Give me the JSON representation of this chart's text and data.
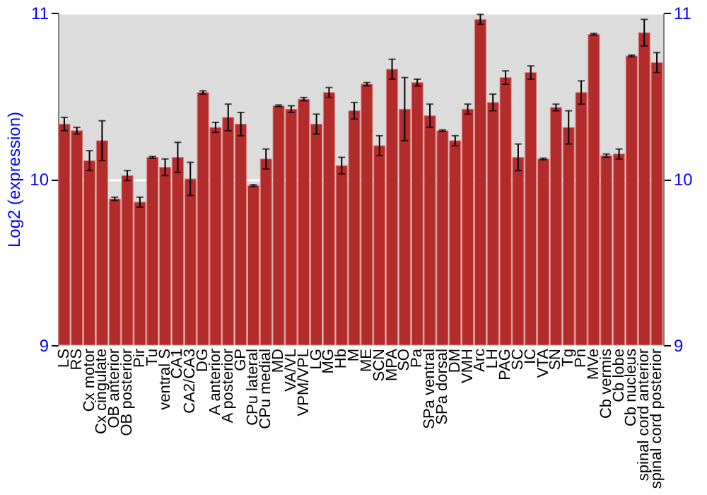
{
  "chart_data": {
    "type": "bar",
    "ylabel": "Log2 (expression)",
    "categories": [
      "LS",
      "RS",
      "Cx motor",
      "Cx cingulate",
      "OB anterior",
      "OB posterior",
      "Pir",
      "Tu",
      "ventral S",
      "CA1",
      "CA2/CA3",
      "DG",
      "A anterior",
      "A posterior",
      "GP",
      "CPu lateral",
      "CPu medial",
      "MD",
      "VA/VL",
      "VPM/VPL",
      "LG",
      "MG",
      "Hb",
      "M",
      "ME",
      "SCN",
      "MPA",
      "SO",
      "Pa",
      "SPa ventral",
      "SPa dorsal",
      "DM",
      "VMH",
      "Arc",
      "LH",
      "PAG",
      "SC",
      "IC",
      "VTA",
      "SN",
      "Tg",
      "Pn",
      "MVe",
      "Cb vermis",
      "Cb lobe",
      "Cb nucleus",
      "spinal cord anterior",
      "spinal cord posterior"
    ],
    "values": [
      10.33,
      10.29,
      10.11,
      10.23,
      9.88,
      10.02,
      9.86,
      10.13,
      10.07,
      10.13,
      10.0,
      10.52,
      10.31,
      10.37,
      10.33,
      9.96,
      10.12,
      10.44,
      10.42,
      10.48,
      10.33,
      10.52,
      10.08,
      10.41,
      10.57,
      10.2,
      10.66,
      10.42,
      10.58,
      10.38,
      10.29,
      10.23,
      10.42,
      10.96,
      10.46,
      10.61,
      10.13,
      10.64,
      10.12,
      10.43,
      10.31,
      10.52,
      10.87,
      10.14,
      10.15,
      10.74,
      10.88,
      10.7
    ],
    "errors": [
      0.04,
      0.02,
      0.06,
      0.12,
      0.01,
      0.03,
      0.03,
      0.005,
      0.05,
      0.09,
      0.1,
      0.01,
      0.03,
      0.08,
      0.07,
      0.005,
      0.06,
      0.005,
      0.02,
      0.01,
      0.06,
      0.03,
      0.05,
      0.05,
      0.01,
      0.06,
      0.06,
      0.19,
      0.02,
      0.07,
      0.005,
      0.03,
      0.03,
      0.03,
      0.05,
      0.04,
      0.08,
      0.04,
      0.005,
      0.02,
      0.1,
      0.07,
      0.005,
      0.01,
      0.03,
      0.005,
      0.08,
      0.06
    ],
    "color": "#b22c2c",
    "ylim": [
      9,
      11
    ],
    "yticks": [
      9,
      10,
      11
    ],
    "y2lim": [
      9,
      11
    ],
    "y2ticks": [
      9,
      10,
      11
    ],
    "grid": "y"
  }
}
